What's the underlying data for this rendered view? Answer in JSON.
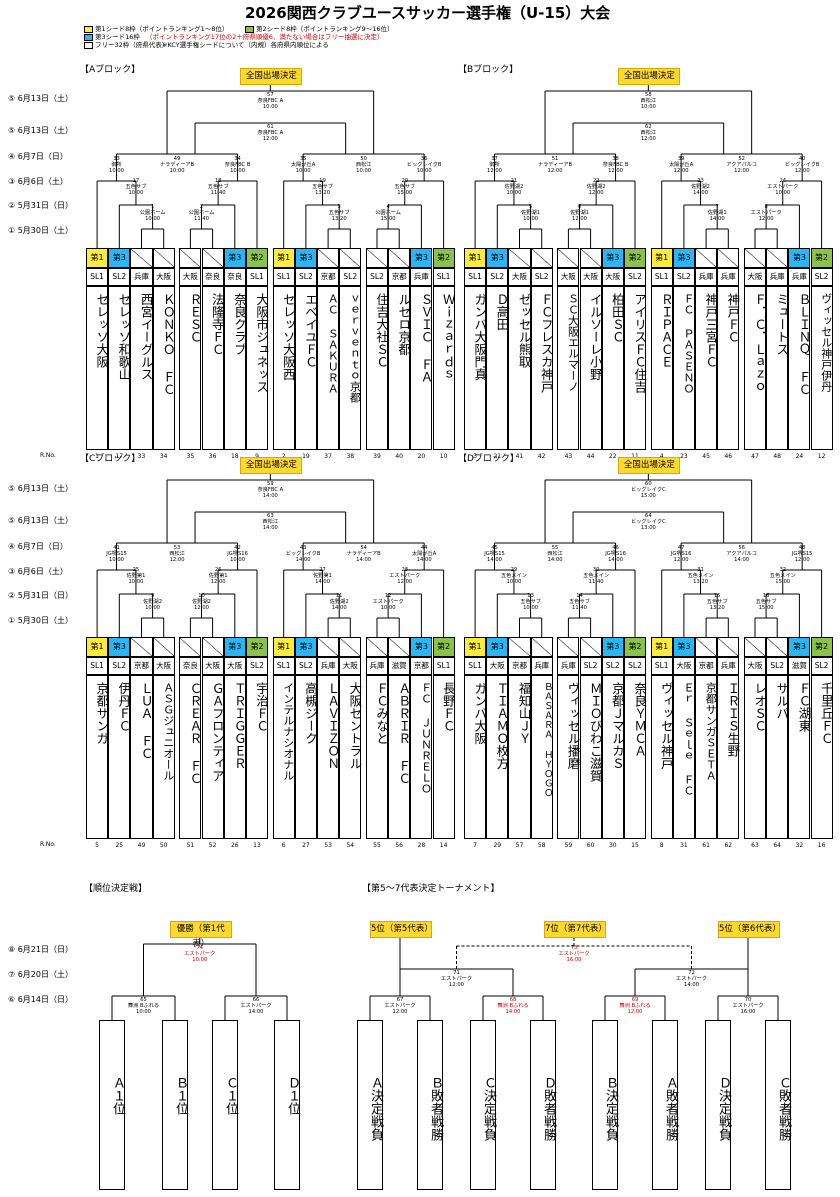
{
  "title": "2026関西クラブユースサッカー選手権（U-15）大会",
  "legend": [
    {
      "color": "#ffeb3b",
      "text": "第1シード8枠（ポイントランキング1～8位）"
    },
    {
      "color": "#8bc34a",
      "text": "第2シード8枠（ポイントランキング9～16位）"
    },
    {
      "color": "#29b6f6",
      "text": "第3シード16枠",
      "note": "（ポイントランキング17位の2＋府県順優6、満たない場合はフリー抽選に決定）"
    },
    {
      "color": "#ffffff",
      "text": "フリー32枠（府県代表）",
      "note": "※KCY選手権シードについて（内規）各府県内順位による"
    }
  ],
  "national_label": "全国出場決定",
  "rounds_top": [
    "⑤ 6月13日（土）",
    "⑤ 6月13日（土）",
    "④ 6月7日（日）",
    "③ 6月6日（土）",
    "② 5月31日（日）",
    "① 5月30日（土）"
  ],
  "rounds_bottom": [
    "⑧ 6月21日（日）",
    "⑦ 6月20日（土）",
    "⑥ 6月14日（日）"
  ],
  "no_label": "R.No.",
  "blocks": [
    {
      "name": "【Aブロック】",
      "final": {
        "no": "57",
        "venue": "奈良FBC A",
        "time": "10:00"
      },
      "semi": {
        "no": "61",
        "venue": "奈良FBC A",
        "time": "12:00"
      },
      "qf": [
        {
          "no": "49",
          "venue": "ナラディーアB",
          "time": "10:00"
        },
        {
          "no": "50",
          "venue": "西松江",
          "time": "10:00"
        }
      ],
      "r3": [
        {
          "no": "33",
          "venue": "御所",
          "time": "10:00"
        },
        {
          "no": "34",
          "venue": "奈良FBC B",
          "time": "10:00"
        },
        {
          "no": "35",
          "venue": "太陽が丘A",
          "time": "10:00"
        },
        {
          "no": "36",
          "venue": "ビッグレイクB",
          "time": "10:00"
        }
      ],
      "r2": [
        {
          "no": "17",
          "venue": "五色サブ",
          "time": "10:00"
        },
        {
          "no": "18",
          "venue": "五色サブ",
          "time": "11:40"
        },
        {
          "no": "19",
          "venue": "五色サブ",
          "time": "13:20"
        },
        {
          "no": "20",
          "venue": "五色サブ",
          "time": "15:00"
        }
      ],
      "r1": [
        {
          "no": "1",
          "venue": "公園ホーム",
          "time": "10:00"
        },
        {
          "no": "2",
          "venue": "公園ホーム",
          "time": "11:40"
        },
        {
          "no": "3",
          "venue": "五色サブ",
          "time": "13:20"
        },
        {
          "no": "4",
          "venue": "公園ホーム",
          "time": "15:00"
        }
      ],
      "teams": [
        {
          "seed": "第1",
          "seedColor": "#ffeb3b",
          "pref": "SL1",
          "name": "セレッソ大阪",
          "no": "1"
        },
        {
          "seed": "第3",
          "seedColor": "#29b6f6",
          "pref": "SL2",
          "name": "セレッソ和歌山",
          "no": "17"
        },
        {
          "seed": "",
          "seedColor": "",
          "pref": "兵庫",
          "name": "西宮イーグルス",
          "no": "33"
        },
        {
          "seed": "",
          "seedColor": "",
          "pref": "大阪",
          "name": "ＫＯＮＫＯ ＦＣ",
          "no": "34"
        },
        {
          "seed": "",
          "seedColor": "",
          "pref": "大阪",
          "name": "ＲＥＳＣ",
          "no": "35"
        },
        {
          "seed": "",
          "seedColor": "",
          "pref": "奈良",
          "name": "法隆寺ＦＣ",
          "no": "36"
        },
        {
          "seed": "第3",
          "seedColor": "#29b6f6",
          "pref": "奈良",
          "name": "奈良クラブ",
          "no": "18"
        },
        {
          "seed": "第2",
          "seedColor": "#8bc34a",
          "pref": "SL1",
          "name": "大阪市ジュネッス",
          "no": "9"
        },
        {
          "seed": "第1",
          "seedColor": "#ffeb3b",
          "pref": "SL1",
          "name": "セレッソ大阪西",
          "no": "2"
        },
        {
          "seed": "第3",
          "seedColor": "#29b6f6",
          "pref": "SL2",
          "name": "エベイユＦＣ",
          "no": "19"
        },
        {
          "seed": "",
          "seedColor": "",
          "pref": "京都",
          "name": "ＡＣ ＳＡＫＵＲＡ",
          "no": "37"
        },
        {
          "seed": "",
          "seedColor": "",
          "pref": "SL2",
          "name": "ｖｅｒｖｅｎｔｏ京都",
          "no": "38"
        },
        {
          "seed": "",
          "seedColor": "",
          "pref": "SL2",
          "name": "住吉大社ＳＣ",
          "no": "39"
        },
        {
          "seed": "",
          "seedColor": "",
          "pref": "京都",
          "name": "ルセロ京都",
          "no": "40"
        },
        {
          "seed": "第3",
          "seedColor": "#29b6f6",
          "pref": "兵庫",
          "name": "ＳＶＩＣ ＦＡ",
          "no": "20"
        },
        {
          "seed": "第2",
          "seedColor": "#8bc34a",
          "pref": "SL1",
          "name": "Ｗｉｚａｒｄｓ",
          "no": "10"
        }
      ]
    },
    {
      "name": "【Bブロック】",
      "final": {
        "no": "58",
        "venue": "西松江",
        "time": "10:00"
      },
      "semi": {
        "no": "62",
        "venue": "西松江",
        "time": "12:00"
      },
      "qf": [
        {
          "no": "51",
          "venue": "ナラディーアB",
          "time": "12:00"
        },
        {
          "no": "52",
          "venue": "アクアパルコ",
          "time": "12:00"
        }
      ],
      "r3": [
        {
          "no": "37",
          "venue": "御所",
          "time": "12:00"
        },
        {
          "no": "38",
          "venue": "奈良FBC B",
          "time": "12:00"
        },
        {
          "no": "39",
          "venue": "太陽が丘A",
          "time": "12:00"
        },
        {
          "no": "40",
          "venue": "ビッグレイクB",
          "time": "12:00"
        }
      ],
      "r2": [
        {
          "no": "21",
          "venue": "佐野湖2",
          "time": "10:00"
        },
        {
          "no": "22",
          "venue": "佐野湖2",
          "time": "12:00"
        },
        {
          "no": "23",
          "venue": "佐野湖2",
          "time": "14:00"
        },
        {
          "no": "24",
          "venue": "エストパーク",
          "time": "10:00"
        }
      ],
      "r1": [
        {
          "no": "5",
          "venue": "佐野湖1",
          "time": "10:00"
        },
        {
          "no": "6",
          "venue": "佐野湖1",
          "time": "12:00"
        },
        {
          "no": "7",
          "venue": "佐野湖1",
          "time": "14:00"
        },
        {
          "no": "8",
          "venue": "エストパーク",
          "time": "12:00"
        }
      ],
      "teams": [
        {
          "seed": "第1",
          "seedColor": "#ffeb3b",
          "pref": "SL1",
          "name": "ガンバ大阪門真",
          "no": "3"
        },
        {
          "seed": "第3",
          "seedColor": "#29b6f6",
          "pref": "SL2",
          "name": "Ｄ高田",
          "no": "21"
        },
        {
          "seed": "",
          "seedColor": "",
          "pref": "大阪",
          "name": "ゼッセル熊取",
          "no": "41"
        },
        {
          "seed": "",
          "seedColor": "",
          "pref": "SL2",
          "name": "ＦＣフレスカ神戸",
          "no": "42"
        },
        {
          "seed": "",
          "seedColor": "",
          "pref": "大阪",
          "name": "ＳＣ大阪エルマーノ",
          "no": "43"
        },
        {
          "seed": "",
          "seedColor": "",
          "pref": "大阪",
          "name": "イルソーレ小野",
          "no": "44"
        },
        {
          "seed": "第3",
          "seedColor": "#29b6f6",
          "pref": "大阪",
          "name": "柏田ＳＣ",
          "no": "22"
        },
        {
          "seed": "第2",
          "seedColor": "#8bc34a",
          "pref": "SL2",
          "name": "アイリスＦＣ住吉",
          "no": "11"
        },
        {
          "seed": "第1",
          "seedColor": "#ffeb3b",
          "pref": "SL1",
          "name": "ＲＩＰＡＣＥ",
          "no": "4"
        },
        {
          "seed": "第3",
          "seedColor": "#29b6f6",
          "pref": "SL2",
          "name": "ＦＣ ＰＡＳＥＮＯ",
          "no": "23"
        },
        {
          "seed": "",
          "seedColor": "",
          "pref": "兵庫",
          "name": "神戸三宮ＦＣ",
          "no": "45"
        },
        {
          "seed": "",
          "seedColor": "",
          "pref": "兵庫",
          "name": "神戸ＦＣ",
          "no": "46"
        },
        {
          "seed": "",
          "seedColor": "",
          "pref": "大阪",
          "name": "Ｆ．Ｃ．Ｌａｚｏ",
          "no": "47"
        },
        {
          "seed": "",
          "seedColor": "",
          "pref": "兵庫",
          "name": "ミュートス",
          "no": "48"
        },
        {
          "seed": "第3",
          "seedColor": "#29b6f6",
          "pref": "兵庫",
          "name": "ＢＬＩＮＱ ＦＣ",
          "no": "24"
        },
        {
          "seed": "第2",
          "seedColor": "#8bc34a",
          "pref": "SL2",
          "name": "ヴィッセル神戸伊丹",
          "no": "12"
        }
      ]
    },
    {
      "name": "【Cブロック】",
      "final": {
        "no": "59",
        "venue": "奈良FBC A",
        "time": "14:00"
      },
      "semi": {
        "no": "63",
        "venue": "西松江",
        "time": "14:00"
      },
      "qf": [
        {
          "no": "53",
          "venue": "西松江",
          "time": "12:00"
        },
        {
          "no": "54",
          "venue": "ナラディーアB",
          "time": "14:00"
        }
      ],
      "r3": [
        {
          "no": "41",
          "venue": "JG堺S15",
          "time": "10:00"
        },
        {
          "no": "42",
          "venue": "JG堺S16",
          "time": "10:00"
        },
        {
          "no": "43",
          "venue": "ビッグレイクB",
          "time": "14:00"
        },
        {
          "no": "44",
          "venue": "太陽が丘A",
          "time": "14:00"
        }
      ],
      "r2": [
        {
          "no": "25",
          "venue": "佐野第1",
          "time": "10:00"
        },
        {
          "no": "26",
          "venue": "佐野第1",
          "time": "12:00"
        },
        {
          "no": "27",
          "venue": "佐野第1",
          "time": "14:00"
        },
        {
          "no": "28",
          "venue": "エストパーク",
          "time": "12:00"
        }
      ],
      "r1": [
        {
          "no": "9",
          "venue": "佐野湖2",
          "time": "10:00"
        },
        {
          "no": "10",
          "venue": "佐野湖2",
          "time": "12:00"
        },
        {
          "no": "11",
          "venue": "佐野湖2",
          "time": "14:00"
        },
        {
          "no": "12",
          "venue": "エストパーク",
          "time": "10:00"
        }
      ],
      "teams": [
        {
          "seed": "第1",
          "seedColor": "#ffeb3b",
          "pref": "SL1",
          "name": "京都サンガ",
          "no": "5"
        },
        {
          "seed": "第3",
          "seedColor": "#29b6f6",
          "pref": "SL2",
          "name": "伊丹ＦＣ",
          "no": "25"
        },
        {
          "seed": "",
          "seedColor": "",
          "pref": "京都",
          "name": "ＬＵＡ ＦＣ",
          "no": "49"
        },
        {
          "seed": "",
          "seedColor": "",
          "pref": "大阪",
          "name": "ＡＳＧジュニオール",
          "no": "50"
        },
        {
          "seed": "",
          "seedColor": "",
          "pref": "奈良",
          "name": "ＣＲＥＡＲ ＦＣ",
          "no": "51"
        },
        {
          "seed": "",
          "seedColor": "",
          "pref": "大阪",
          "name": "ＧＡフロンティア",
          "no": "52"
        },
        {
          "seed": "第3",
          "seedColor": "#29b6f6",
          "pref": "大阪",
          "name": "ＴＲＩＧＧＥＲ",
          "no": "26"
        },
        {
          "seed": "第2",
          "seedColor": "#8bc34a",
          "pref": "SL2",
          "name": "宇治ＦＣ",
          "no": "13"
        },
        {
          "seed": "第1",
          "seedColor": "#ffeb3b",
          "pref": "SL1",
          "name": "インテルナシオナル",
          "no": "6"
        },
        {
          "seed": "第3",
          "seedColor": "#29b6f6",
          "pref": "SL2",
          "name": "高槻ジーク",
          "no": "27"
        },
        {
          "seed": "",
          "seedColor": "",
          "pref": "兵庫",
          "name": "ＬＡＶＩＺＯＮ",
          "no": "53"
        },
        {
          "seed": "",
          "seedColor": "",
          "pref": "大阪",
          "name": "大阪セントラル",
          "no": "54"
        },
        {
          "seed": "",
          "seedColor": "",
          "pref": "兵庫",
          "name": "ＦＣみなと",
          "no": "55"
        },
        {
          "seed": "",
          "seedColor": "",
          "pref": "滋賀",
          "name": "ＡＢＲＩＲ ＦＣ",
          "no": "56"
        },
        {
          "seed": "第3",
          "seedColor": "#29b6f6",
          "pref": "京都",
          "name": "ＦＣ ＪＵＮＲＥＬＯ",
          "no": "28"
        },
        {
          "seed": "第2",
          "seedColor": "#8bc34a",
          "pref": "SL1",
          "name": "長野ＦＣ",
          "no": "14"
        }
      ]
    },
    {
      "name": "【Dブロック】",
      "final": {
        "no": "60",
        "venue": "ビッグレイクC",
        "time": "15:00"
      },
      "semi": {
        "no": "64",
        "venue": "ビッグレイクC",
        "time": "13:00"
      },
      "qf": [
        {
          "no": "55",
          "venue": "西松江",
          "time": "14:00"
        },
        {
          "no": "56",
          "venue": "アクアパルコ",
          "time": "14:00"
        }
      ],
      "r3": [
        {
          "no": "45",
          "venue": "JG堺S15",
          "time": "14:00"
        },
        {
          "no": "46",
          "venue": "JG堺S16",
          "time": "14:00"
        },
        {
          "no": "47",
          "venue": "JG堺S16",
          "time": "12:00"
        },
        {
          "no": "48",
          "venue": "JG堺S15",
          "time": "12:00"
        }
      ],
      "r2": [
        {
          "no": "29",
          "venue": "五色メイン",
          "time": "10:00"
        },
        {
          "no": "30",
          "venue": "五色メイン",
          "time": "11:40"
        },
        {
          "no": "31",
          "venue": "五色メイン",
          "time": "13:20"
        },
        {
          "no": "32",
          "venue": "五色メイン",
          "time": "15:00"
        }
      ],
      "r1": [
        {
          "no": "13",
          "venue": "五色サブ",
          "time": "10:00"
        },
        {
          "no": "14",
          "venue": "五色サブ",
          "time": "11:40"
        },
        {
          "no": "15",
          "venue": "五色サブ",
          "time": "13:20"
        },
        {
          "no": "16",
          "venue": "五色サブ",
          "time": "15:00"
        }
      ],
      "teams": [
        {
          "seed": "第1",
          "seedColor": "#ffeb3b",
          "pref": "SL1",
          "name": "ガンバ大阪",
          "no": "7"
        },
        {
          "seed": "第3",
          "seedColor": "#29b6f6",
          "pref": "大阪",
          "name": "ＴＩＡＭＯ枚方",
          "no": "29"
        },
        {
          "seed": "",
          "seedColor": "",
          "pref": "京都",
          "name": "福知山ＪＹ",
          "no": "57"
        },
        {
          "seed": "",
          "seedColor": "",
          "pref": "兵庫",
          "name": "ＢＡＳＡＲＡ ＨＹＯＧＯ",
          "no": "58"
        },
        {
          "seed": "",
          "seedColor": "",
          "pref": "兵庫",
          "name": "ヴィッセル播磨",
          "no": "59"
        },
        {
          "seed": "",
          "seedColor": "",
          "pref": "SL2",
          "name": "ＭＩＯびわこ滋賀",
          "no": "60"
        },
        {
          "seed": "第3",
          "seedColor": "#29b6f6",
          "pref": "SL2",
          "name": "京都ＪマルカＳ",
          "no": "30"
        },
        {
          "seed": "第2",
          "seedColor": "#8bc34a",
          "pref": "SL2",
          "name": "奈良ＹＭＣＡ",
          "no": "15"
        },
        {
          "seed": "第1",
          "seedColor": "#ffeb3b",
          "pref": "SL1",
          "name": "ヴィッセル神戸",
          "no": "8"
        },
        {
          "seed": "第3",
          "seedColor": "#29b6f6",
          "pref": "大阪",
          "name": "Ｅｒ Ｓｅｌｅ ＦＣ",
          "no": "31"
        },
        {
          "seed": "",
          "seedColor": "",
          "pref": "京都",
          "name": "京都サンガＳＥＴＡ",
          "no": "61"
        },
        {
          "seed": "",
          "seedColor": "",
          "pref": "兵庫",
          "name": "ＩＲＩＳ生野",
          "no": "62"
        },
        {
          "seed": "",
          "seedColor": "",
          "pref": "大阪",
          "name": "レオＳＣ",
          "no": "63"
        },
        {
          "seed": "",
          "seedColor": "",
          "pref": "SL2",
          "name": "サルパ",
          "no": "64"
        },
        {
          "seed": "第3",
          "seedColor": "#29b6f6",
          "pref": "滋賀",
          "name": "ＦＣ湖東",
          "no": "32"
        },
        {
          "seed": "第2",
          "seedColor": "#8bc34a",
          "pref": "SL2",
          "name": "千里丘ＦＣ",
          "no": "16"
        }
      ]
    }
  ],
  "placement": {
    "title": "【順位決定戦】",
    "final_badge": "優勝（第1代表）",
    "final": {
      "no": "74",
      "venue": "エストパーク",
      "time": "10:00"
    },
    "semis": [
      {
        "no": "65",
        "venue": "舞洲 Bふれる",
        "time": "10:00"
      },
      {
        "no": "66",
        "venue": "エストパーク",
        "time": "14:00"
      }
    ],
    "teams": [
      "Ａ１位",
      "Ｂ１位",
      "Ｃ１位",
      "Ｄ１位"
    ]
  },
  "fifth": {
    "title": "【第5～7代表決定トーナメント】",
    "badges": [
      "5位（第5代表）",
      "7位（第7代表）",
      "5位（第6代表）"
    ],
    "third": {
      "no": "73",
      "venue": "エストパーク",
      "time": "16:00"
    },
    "finals": [
      {
        "no": "71",
        "venue": "エストパーク",
        "time": "12:00"
      },
      {
        "no": "72",
        "venue": "エストパーク",
        "time": "14:00"
      }
    ],
    "firsts": [
      {
        "no": "67",
        "venue": "エストパーク",
        "time": "12:00"
      },
      {
        "no": "68",
        "venue": "舞洲 Bふれる",
        "time": "14:00"
      },
      {
        "no": "69",
        "venue": "舞洲 Bふれる",
        "time": "12:00"
      },
      {
        "no": "70",
        "venue": "エストパーク",
        "time": "16:00"
      }
    ],
    "teams": [
      "Ａ決定戦負",
      "Ｂ敗者戦勝",
      "Ｃ決定戦負",
      "Ｄ敗者戦勝",
      "Ｂ決定戦負",
      "Ａ敗者戦勝",
      "Ｄ決定戦負",
      "Ｃ敗者戦勝"
    ]
  }
}
